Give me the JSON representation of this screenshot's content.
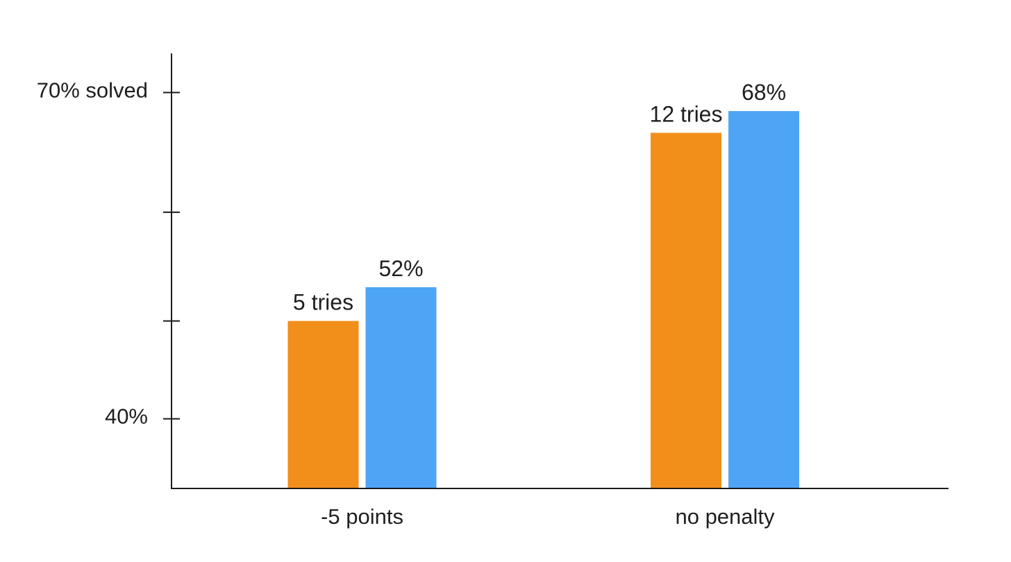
{
  "chart_data": {
    "type": "bar",
    "categories": [
      "-5 points",
      "no penalty"
    ],
    "series": [
      {
        "color": "#f28e1a",
        "values": [
          0.49,
          0.663
        ]
      },
      {
        "color": "#4fa5f5",
        "values": [
          0.521,
          0.683
        ]
      }
    ],
    "y_ticks": [
      {
        "value": 0.4,
        "label": "40%"
      },
      {
        "value": 0.49,
        "label": ""
      },
      {
        "value": 0.59,
        "label": ""
      },
      {
        "value": 0.7,
        "label": "70% solved"
      }
    ],
    "data_labels": [
      {
        "series": 0,
        "category": 0,
        "text": "5 tries"
      },
      {
        "series": 1,
        "category": 0,
        "text": "52%"
      },
      {
        "series": 0,
        "category": 1,
        "text": "12 tries"
      },
      {
        "series": 1,
        "category": 1,
        "text": "68%"
      }
    ],
    "ylim": [
      0.336,
      0.736
    ],
    "grid": false,
    "title": "",
    "xlabel": "",
    "ylabel": ""
  }
}
